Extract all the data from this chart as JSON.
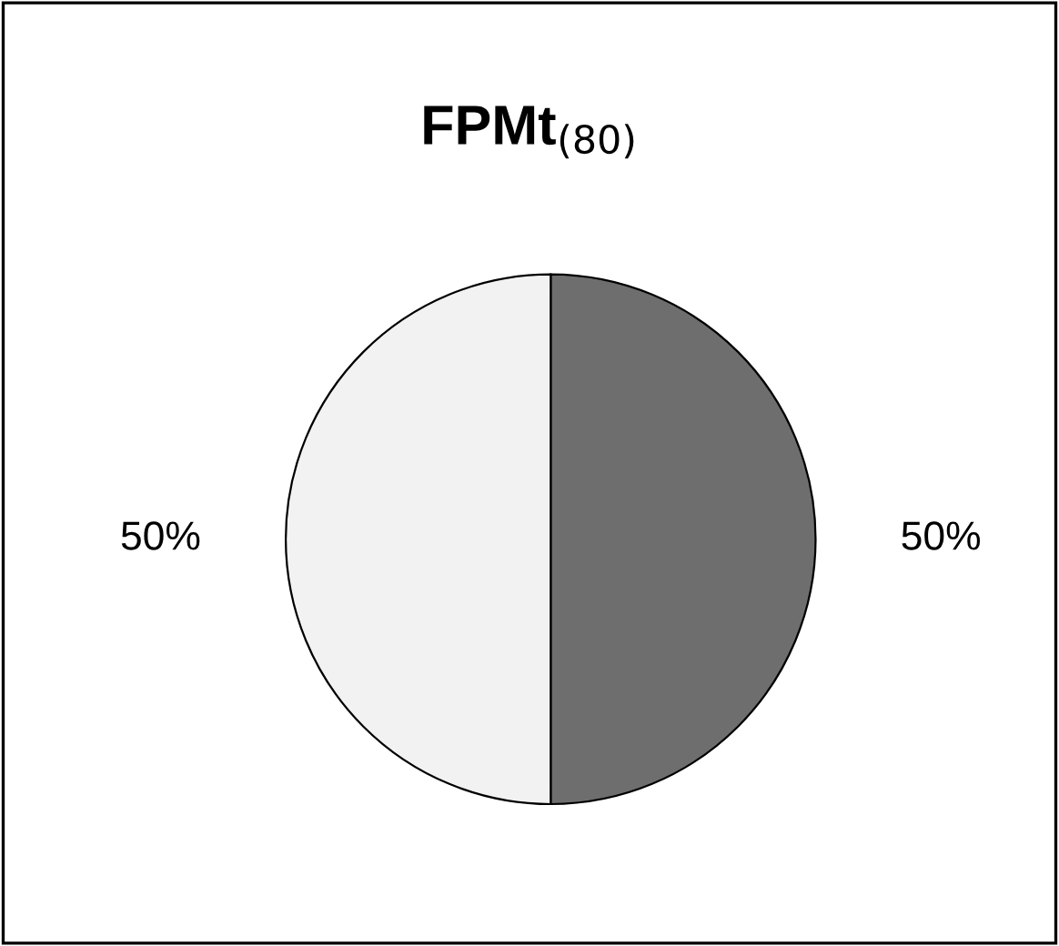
{
  "chart_data": {
    "type": "pie",
    "title": "FPMt$_{(80)}$",
    "categories": [
      null,
      null
    ],
    "values": [
      50,
      50
    ],
    "colors": [
      "#6e6e6e",
      "#f2f2f2"
    ],
    "value_labels": [
      "50%",
      "50%"
    ],
    "legend": false
  }
}
